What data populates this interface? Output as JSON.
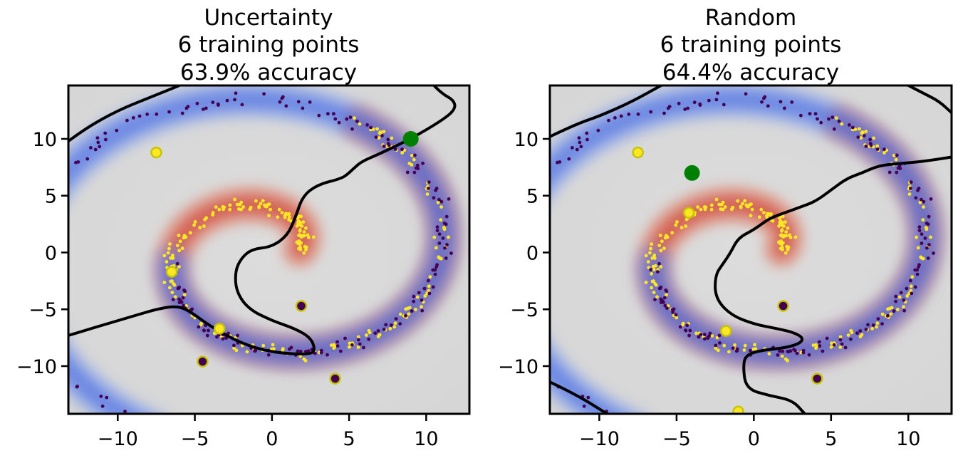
{
  "chart_data": [
    {
      "type": "scatter",
      "title_lines": [
        "Uncertainty",
        "6 training points",
        "63.9% accuracy"
      ],
      "xlim": [
        -13.2,
        12.8
      ],
      "ylim": [
        -14.2,
        14.7
      ],
      "xticks": [
        -10,
        -5,
        0,
        5,
        10
      ],
      "xtick_labels": [
        "−10",
        "−5",
        "0",
        "5",
        "10"
      ],
      "yticks": [
        10,
        5,
        0,
        -5,
        -10
      ],
      "ytick_labels": [
        "10",
        "5",
        "0",
        "−5",
        "−10"
      ],
      "grid": false,
      "class_colors": {
        "positive": "#fde725",
        "negative": "#440154",
        "selected": "#008000",
        "boundary": "#000000"
      },
      "training_points": [
        {
          "x": -7.5,
          "y": 8.8,
          "class": "positive"
        },
        {
          "x": -6.5,
          "y": -1.7,
          "class": "positive"
        },
        {
          "x": -3.4,
          "y": -6.7,
          "class": "positive"
        },
        {
          "x": 1.9,
          "y": -4.7,
          "class": "negative"
        },
        {
          "x": -4.5,
          "y": -9.6,
          "class": "negative"
        },
        {
          "x": 4.1,
          "y": -11.1,
          "class": "negative"
        }
      ],
      "selected_point": {
        "x": 9.0,
        "y": 10.0
      },
      "decision_boundaries": [
        [
          [
            -13.2,
            9.8
          ],
          [
            -12.0,
            11.0
          ],
          [
            -10.0,
            12.5
          ],
          [
            -8.0,
            13.6
          ],
          [
            -6.0,
            14.7
          ]
        ],
        [
          [
            10.5,
            14.7
          ],
          [
            11.0,
            14.0
          ],
          [
            11.8,
            13.4
          ],
          [
            11.9,
            12.6
          ],
          [
            11.0,
            11.6
          ],
          [
            9.0,
            10.0
          ],
          [
            7.0,
            8.7
          ],
          [
            5.8,
            8.0
          ],
          [
            5.3,
            7.4
          ],
          [
            5.0,
            7.0
          ],
          [
            4.5,
            6.5
          ],
          [
            3.0,
            6.0
          ],
          [
            2.0,
            5.0
          ],
          [
            1.5,
            3.0
          ],
          [
            1.0,
            1.5
          ],
          [
            0.0,
            0.5
          ],
          [
            -1.3,
            0.3
          ],
          [
            -2.0,
            -0.5
          ],
          [
            -2.4,
            -1.7
          ],
          [
            -2.3,
            -3.5
          ],
          [
            -1.5,
            -5.0
          ],
          [
            0.0,
            -6.0
          ],
          [
            1.5,
            -6.7
          ],
          [
            2.5,
            -7.5
          ],
          [
            2.8,
            -8.5
          ],
          [
            2.5,
            -9.0
          ],
          [
            0.0,
            -8.8
          ],
          [
            -2.0,
            -8.0
          ],
          [
            -4.0,
            -6.5
          ],
          [
            -5.5,
            -5.0
          ],
          [
            -6.3,
            -4.7
          ],
          [
            -7.5,
            -5.0
          ],
          [
            -9.0,
            -5.6
          ],
          [
            -10.0,
            -6.0
          ],
          [
            -11.5,
            -6.6
          ],
          [
            -13.2,
            -7.3
          ]
        ]
      ],
      "spirals": [
        {
          "class": "positive",
          "theta": [
            0.15,
            7.4
          ],
          "r0": 1.6,
          "growth": 1.5,
          "count": 230
        },
        {
          "class": "negative",
          "theta": [
            3.29,
            10.54
          ],
          "r0": 1.6,
          "growth": 1.5,
          "count": 230
        }
      ]
    },
    {
      "type": "scatter",
      "title_lines": [
        "Random",
        "6 training points",
        "64.4% accuracy"
      ],
      "xlim": [
        -13.2,
        12.8
      ],
      "ylim": [
        -14.2,
        14.7
      ],
      "xticks": [
        -10,
        -5,
        0,
        5,
        10
      ],
      "xtick_labels": [
        "−10",
        "−5",
        "0",
        "5",
        "10"
      ],
      "yticks": [
        10,
        5,
        0,
        -5,
        -10
      ],
      "ytick_labels": [
        "10",
        "5",
        "0",
        "−5",
        "−10"
      ],
      "grid": false,
      "class_colors": {
        "positive": "#fde725",
        "negative": "#440154",
        "selected": "#008000",
        "boundary": "#000000"
      },
      "training_points": [
        {
          "x": -7.5,
          "y": 8.8,
          "class": "positive"
        },
        {
          "x": -4.2,
          "y": 3.5,
          "class": "positive"
        },
        {
          "x": -1.8,
          "y": -6.9,
          "class": "positive"
        },
        {
          "x": -1.0,
          "y": -14.0,
          "class": "positive"
        },
        {
          "x": 1.9,
          "y": -4.7,
          "class": "negative"
        },
        {
          "x": 4.1,
          "y": -11.1,
          "class": "negative"
        }
      ],
      "selected_point": {
        "x": -4.0,
        "y": 7.0
      },
      "decision_boundaries": [
        [
          [
            -13.2,
            10.2
          ],
          [
            -11.5,
            11.3
          ],
          [
            -10.0,
            12.0
          ],
          [
            -8.0,
            13.2
          ],
          [
            -6.0,
            14.7
          ]
        ],
        [
          [
            10.0,
            14.7
          ],
          [
            11.0,
            14.0
          ],
          [
            12.0,
            13.3
          ],
          [
            12.8,
            12.3
          ]
        ],
        [
          [
            12.8,
            8.4
          ],
          [
            11.0,
            8.0
          ],
          [
            9.0,
            7.8
          ],
          [
            8.0,
            7.6
          ],
          [
            7.0,
            7.0
          ],
          [
            6.0,
            6.5
          ],
          [
            5.0,
            5.5
          ],
          [
            4.0,
            4.5
          ],
          [
            3.0,
            4.0
          ],
          [
            2.0,
            3.5
          ],
          [
            1.0,
            3.0
          ],
          [
            0.0,
            2.0
          ],
          [
            -1.0,
            1.3
          ],
          [
            -1.5,
            0.0
          ],
          [
            -2.0,
            -1.0
          ],
          [
            -2.5,
            -2.0
          ],
          [
            -2.5,
            -4.0
          ],
          [
            -1.5,
            -5.5
          ],
          [
            0.0,
            -6.3
          ],
          [
            1.5,
            -6.7
          ],
          [
            2.5,
            -7.0
          ],
          [
            3.2,
            -7.5
          ],
          [
            3.0,
            -8.0
          ],
          [
            2.0,
            -8.4
          ],
          [
            0.5,
            -8.6
          ],
          [
            -0.5,
            -9.0
          ],
          [
            -0.7,
            -10.0
          ],
          [
            -0.5,
            -12.0
          ],
          [
            1.0,
            -12.6
          ],
          [
            2.5,
            -13.0
          ],
          [
            3.3,
            -14.2
          ]
        ],
        [
          [
            -13.2,
            -11.4
          ],
          [
            -11.5,
            -12.5
          ],
          [
            -9.5,
            -14.2
          ]
        ]
      ],
      "spirals": [
        {
          "class": "positive",
          "theta": [
            0.15,
            7.4
          ],
          "r0": 1.6,
          "growth": 1.5,
          "count": 230
        },
        {
          "class": "negative",
          "theta": [
            3.29,
            10.54
          ],
          "r0": 1.6,
          "growth": 1.5,
          "count": 230
        }
      ]
    }
  ]
}
